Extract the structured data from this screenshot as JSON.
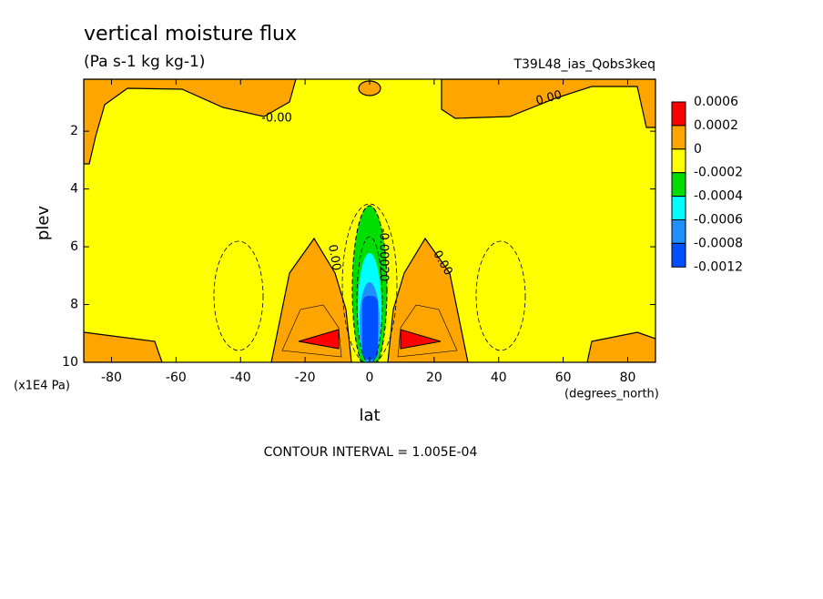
{
  "chart_data": {
    "type": "contour",
    "title": "vertical moisture flux",
    "subtitle": "(Pa s-1 kg kg-1)",
    "run_label": "T39L48_ias_Qobs3keq",
    "x_label": "lat",
    "x_units": "(degrees_north)",
    "y_label": "plev",
    "y_units": "(x1E4 Pa)",
    "footer": "CONTOUR INTERVAL = 1.005E-04",
    "xlim": [
      -88.6,
      88.6
    ],
    "xticks": [
      -80,
      -60,
      -40,
      -20,
      0,
      20,
      40,
      60,
      80
    ],
    "ylim": [
      10,
      0.2
    ],
    "yticks": [
      2,
      4,
      6,
      8,
      10
    ],
    "colorbar": {
      "levels": [
        0.0006,
        0.0002,
        0,
        -0.0002,
        -0.0004,
        -0.0006,
        -0.0008,
        -0.0012
      ],
      "colors": [
        "#ff0000",
        "#ffa500",
        "#ffff00",
        "#00dd00",
        "#00ffff",
        "#1e90ff",
        "#0050ff"
      ]
    },
    "contour_labels": [
      "-0.00",
      "0.00",
      "0.00",
      "0.00",
      "-0.00020"
    ]
  }
}
